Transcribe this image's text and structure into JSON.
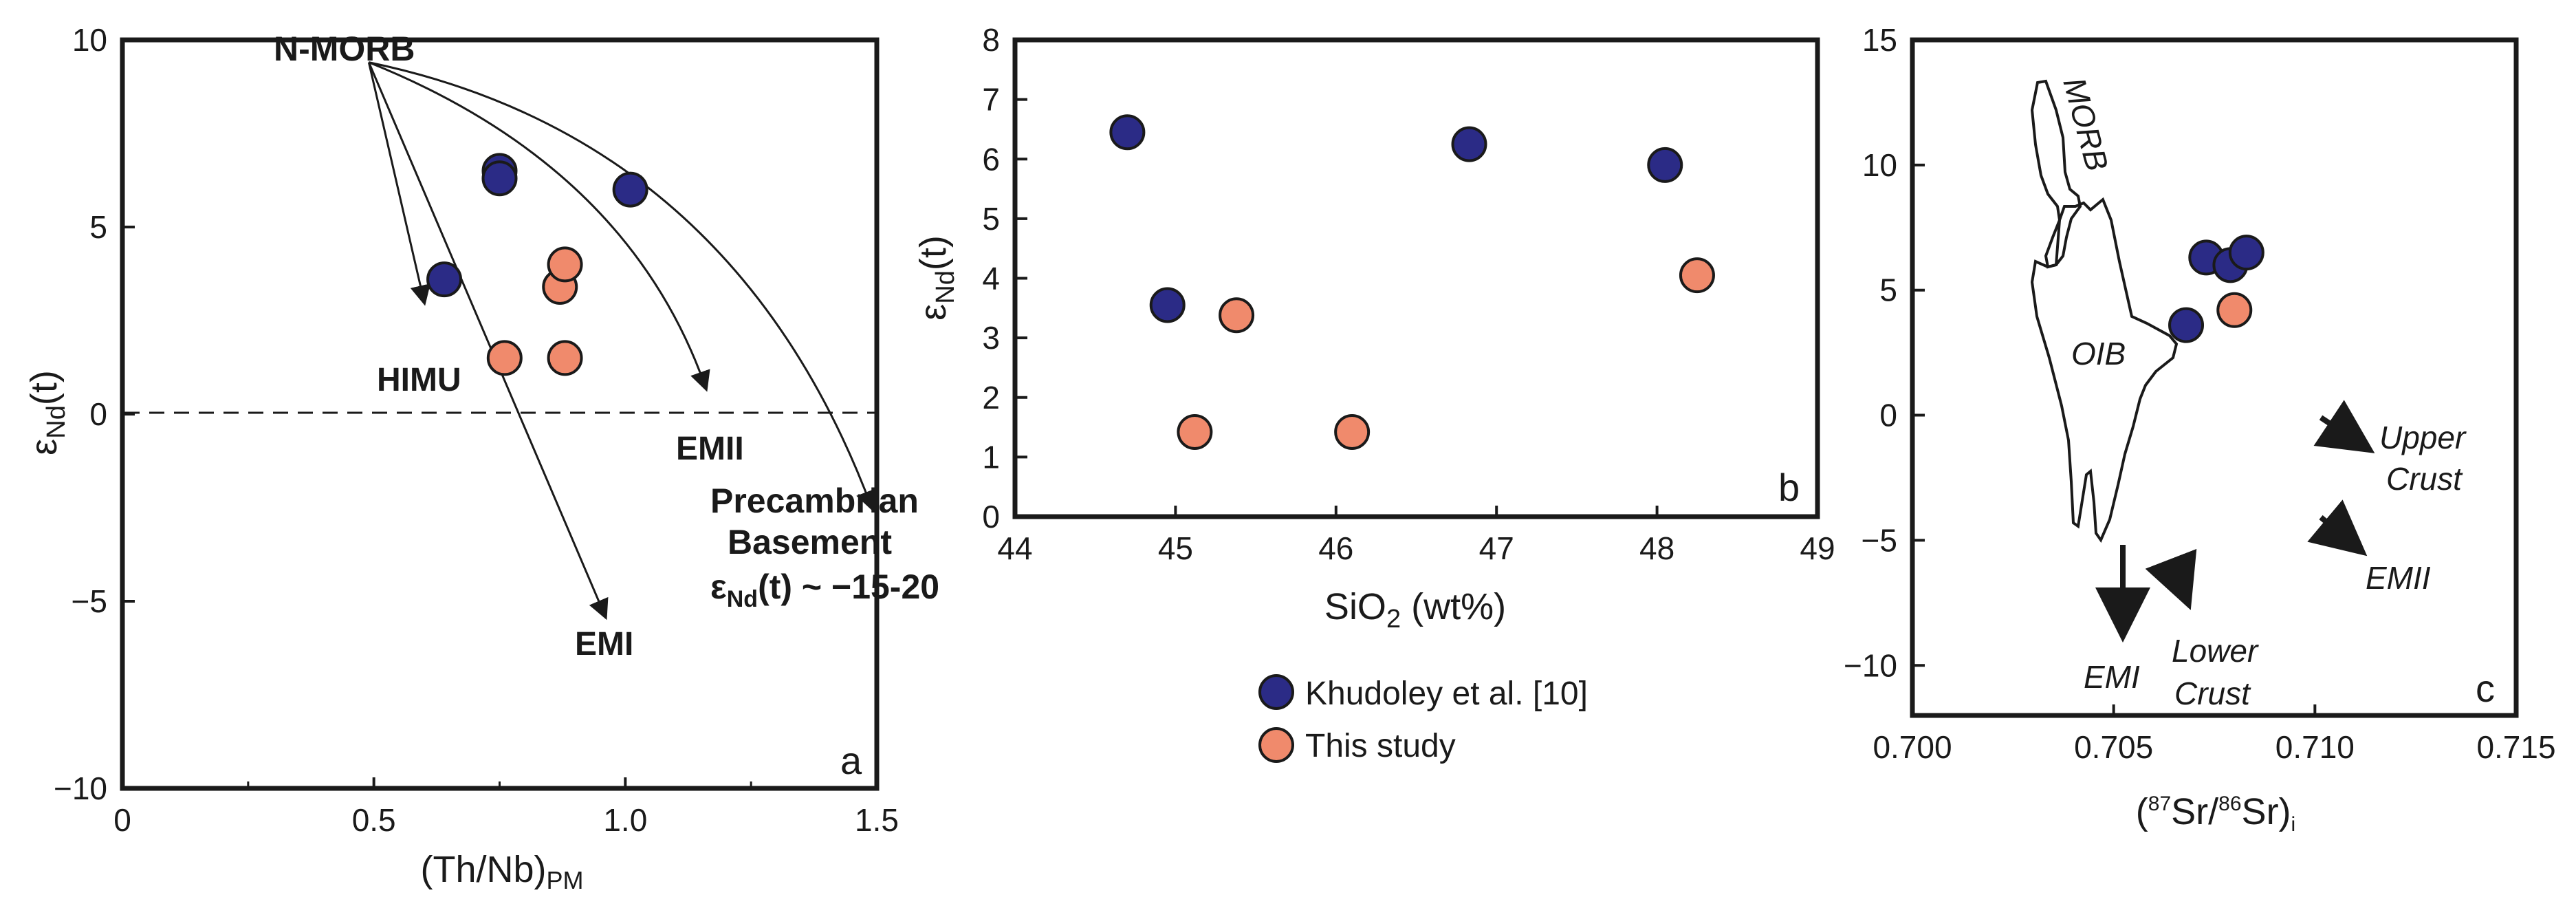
{
  "colors": {
    "khudoley": "#2b2b86",
    "this_study": "#f08a6c",
    "stroke": "#1a1a1a"
  },
  "legend": {
    "khudoley": "Khudoley et al. [10]",
    "this_study": "This study"
  },
  "chart_data": [
    {
      "panel": "a",
      "type": "scatter",
      "xlabel": "(Th/Nb)",
      "xlabel_sub": "PM",
      "ylabel": "ε",
      "ylabel_sub": "Nd",
      "ylabel_suffix": "(t)",
      "xlim": [
        0,
        1.5
      ],
      "ylim": [
        -10,
        10
      ],
      "xticks": [
        "0",
        "0.5",
        "1.0",
        "1.5"
      ],
      "yticks": [
        "−10",
        "−5",
        "0",
        "5",
        "10"
      ],
      "series": [
        {
          "name": "Khudoley et al. [10]",
          "points": [
            [
              0.75,
              6.5
            ],
            [
              0.75,
              6.3
            ],
            [
              0.64,
              3.6
            ],
            [
              1.01,
              6.0
            ]
          ]
        },
        {
          "name": "This study",
          "points": [
            [
              0.76,
              1.5
            ],
            [
              0.88,
              1.5
            ],
            [
              0.87,
              3.4
            ],
            [
              0.88,
              4.0
            ]
          ]
        }
      ],
      "reference_line": {
        "y": 0
      },
      "source_label": "N-MORB",
      "end_members": [
        {
          "label": "HIMU",
          "from": [
            0.49,
            9.4
          ],
          "to": [
            0.6,
            3.0
          ]
        },
        {
          "label": "EMI",
          "from": [
            0.49,
            9.4
          ],
          "to": [
            0.96,
            -5.4
          ]
        },
        {
          "label": "EMII",
          "from": [
            0.49,
            9.4
          ],
          "to": [
            1.16,
            0.7
          ]
        },
        {
          "label": "Precambrian",
          "from": [
            0.49,
            9.4
          ],
          "to": [
            1.49,
            -2.5
          ]
        }
      ],
      "annotations": {
        "himu": "HIMU",
        "emi": "EMI",
        "emii": "EMII",
        "basement_line1": "Precambrian",
        "basement_line2": "Basement",
        "basement_eps": "ε",
        "basement_sub": "Nd",
        "basement_value": "(t) ~ −15-20"
      }
    },
    {
      "panel": "b",
      "type": "scatter",
      "xlabel": "SiO",
      "xlabel_sub": "2",
      "xlabel_suffix": " (wt%)",
      "ylabel": "ε",
      "ylabel_sub": "Nd",
      "ylabel_suffix": "(t)",
      "xlim": [
        44,
        49
      ],
      "ylim": [
        0,
        8
      ],
      "xticks": [
        "44",
        "45",
        "46",
        "47",
        "48",
        "49"
      ],
      "yticks": [
        "0",
        "1",
        "2",
        "3",
        "4",
        "5",
        "6",
        "7",
        "8"
      ],
      "series": [
        {
          "name": "Khudoley et al. [10]",
          "points": [
            [
              44.7,
              6.45
            ],
            [
              44.95,
              3.55
            ],
            [
              46.83,
              6.25
            ],
            [
              48.05,
              5.9
            ]
          ]
        },
        {
          "name": "This study",
          "points": [
            [
              45.12,
              1.42
            ],
            [
              45.38,
              3.38
            ],
            [
              46.1,
              1.42
            ],
            [
              48.25,
              4.05
            ]
          ]
        }
      ]
    },
    {
      "panel": "c",
      "type": "scatter",
      "xlabel": "Sr/",
      "xlabel_sup1": "87",
      "xlabel_sup2": "86",
      "xlabel_tail": "Sr)",
      "xlabel_sub": "i",
      "xlim": [
        0.7,
        0.715
      ],
      "ylim": [
        -12,
        15
      ],
      "xticks": [
        "0.700",
        "0.705",
        "0.710",
        "0.715"
      ],
      "yticks": [
        "−10",
        "−5",
        "0",
        "5",
        "10",
        "15"
      ],
      "series": [
        {
          "name": "Khudoley et al. [10]",
          "points": [
            [
              0.7068,
              3.6
            ],
            [
              0.7073,
              6.3
            ],
            [
              0.7079,
              6.0
            ],
            [
              0.7083,
              6.5
            ]
          ]
        },
        {
          "name": "This study",
          "points": [
            [
              0.708,
              4.2
            ]
          ]
        }
      ],
      "field_labels": {
        "morb": "MORB",
        "oib": "OIB"
      },
      "arrow_labels": {
        "upper_crust_1": "Upper",
        "upper_crust_2": "Crust",
        "emii": "EMII",
        "emi": "EMI",
        "lower_crust_1": "Lower",
        "lower_crust_2": "Crust"
      }
    }
  ],
  "panel_letters": {
    "a": "a",
    "b": "b",
    "c": "c"
  }
}
